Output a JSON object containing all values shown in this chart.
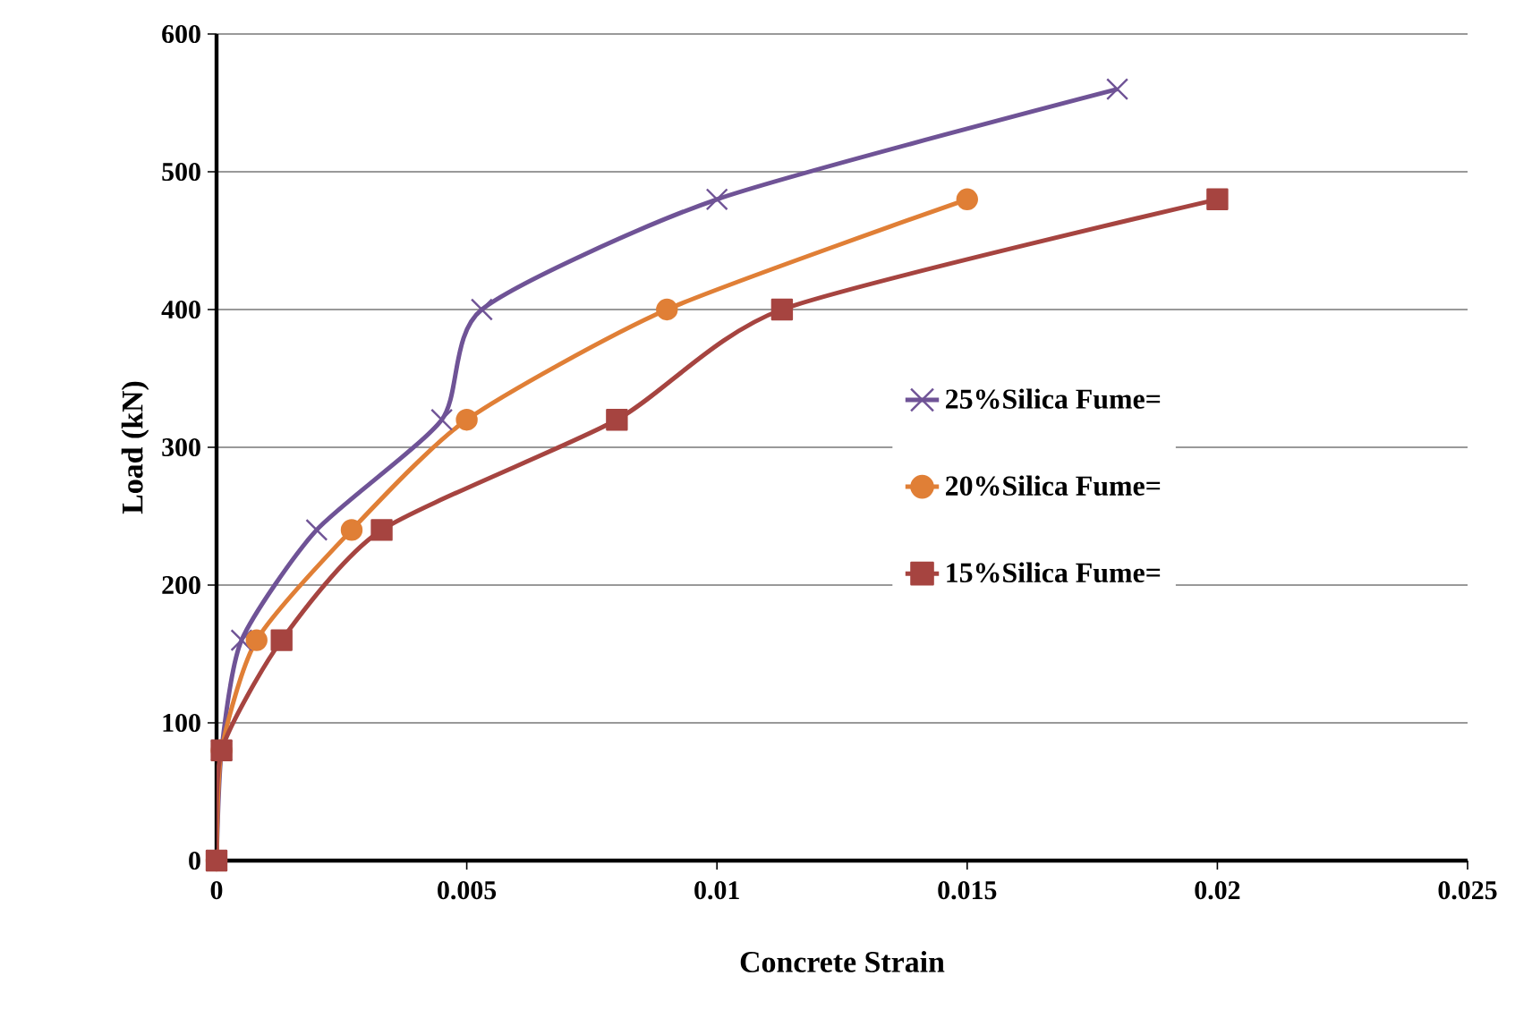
{
  "chart_data": {
    "type": "line",
    "xlabel": "Concrete Strain",
    "ylabel": "Load (kN)",
    "xlim": [
      0,
      0.025
    ],
    "xticks": [
      0,
      0.005,
      0.01,
      0.015,
      0.02,
      0.025
    ],
    "ylim": [
      0,
      600
    ],
    "yticks": [
      0,
      100,
      200,
      300,
      400,
      500,
      600
    ],
    "grid": "y",
    "legend": "right",
    "line_style": "solid",
    "series": [
      {
        "name": "25%Silica Fume=",
        "color": "#6f5396",
        "marker": "cross",
        "x": [
          0,
          0.0001,
          0.0005,
          0.002,
          0.0045,
          0.0053,
          0.01,
          0.018
        ],
        "values": [
          0,
          80,
          160,
          240,
          320,
          400,
          480,
          560
        ]
      },
      {
        "name": "20%Silica Fume=",
        "color": "#e07f36",
        "marker": "circle",
        "x": [
          0,
          0.0001,
          0.0008,
          0.0027,
          0.005,
          0.009,
          0.015
        ],
        "values": [
          0,
          80,
          160,
          240,
          320,
          400,
          480
        ]
      },
      {
        "name": "15%Silica Fume=",
        "color": "#a64440",
        "marker": "square",
        "x": [
          0,
          0.0001,
          0.0013,
          0.0033,
          0.008,
          0.0113,
          0.02
        ],
        "values": [
          0,
          80,
          160,
          240,
          320,
          400,
          480
        ]
      }
    ]
  }
}
